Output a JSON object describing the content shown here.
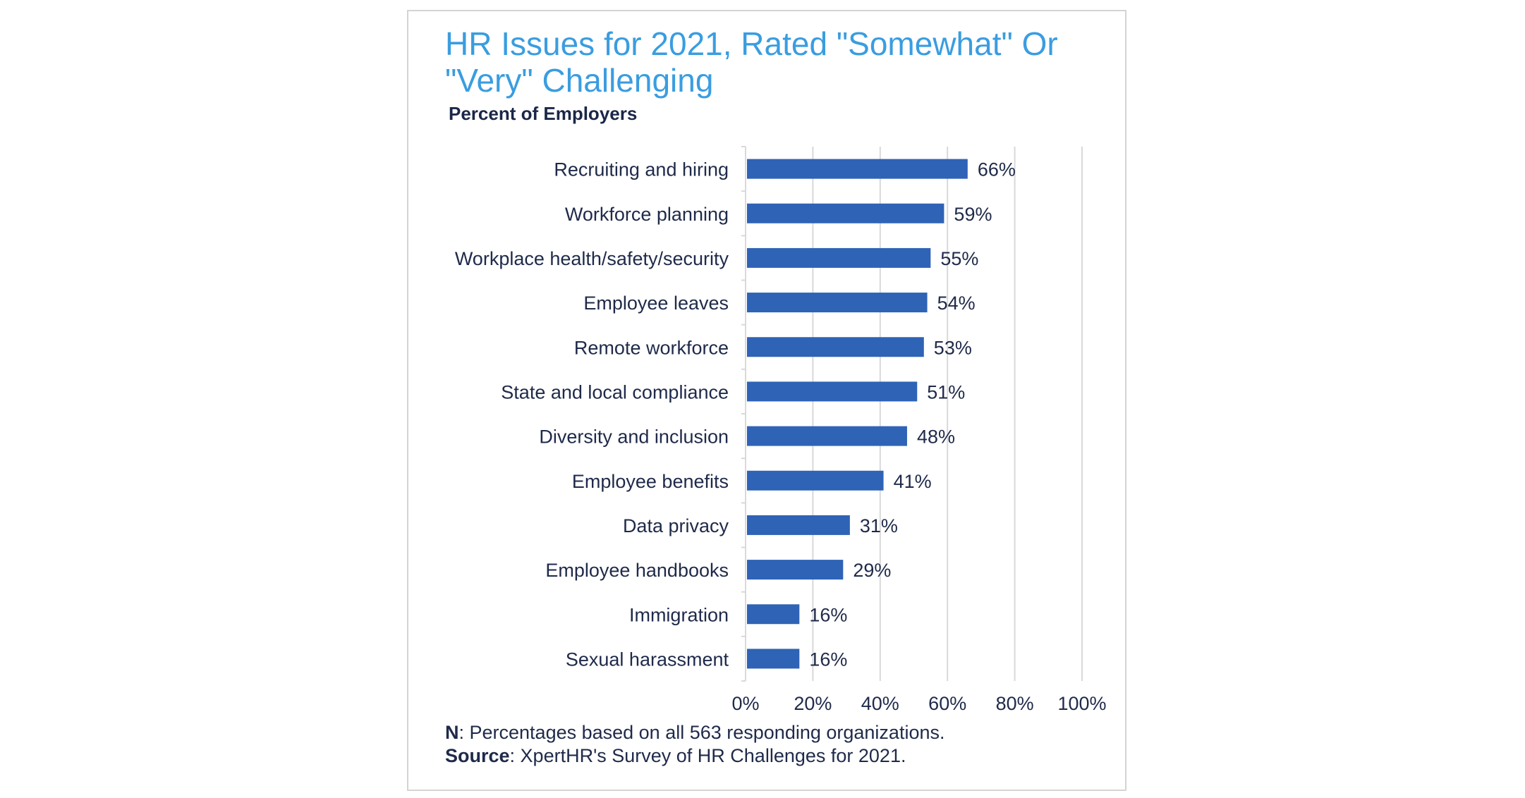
{
  "chart_data": {
    "type": "bar",
    "orientation": "horizontal",
    "title": "HR Issues for 2021, Rated \"Somewhat\" Or \"Very\" Challenging",
    "subtitle": "Percent of Employers",
    "categories": [
      "Recruiting and hiring",
      "Workforce planning",
      "Workplace health/safety/security",
      "Employee leaves",
      "Remote workforce",
      "State and local compliance",
      "Diversity and inclusion",
      "Employee benefits",
      "Data privacy",
      "Employee handbooks",
      "Immigration",
      "Sexual harassment"
    ],
    "values": [
      66,
      59,
      55,
      54,
      53,
      51,
      48,
      41,
      31,
      29,
      16,
      16
    ],
    "data_labels": [
      "66%",
      "59%",
      "55%",
      "54%",
      "53%",
      "51%",
      "48%",
      "41%",
      "31%",
      "29%",
      "16%",
      "16%"
    ],
    "xlim": [
      0,
      100
    ],
    "x_ticks": [
      "0%",
      "20%",
      "40%",
      "60%",
      "80%",
      "100%"
    ],
    "grid": true,
    "bar_color": "#2e63b6",
    "title_color": "#3a9de0",
    "notes": {
      "n_label": "N",
      "n_text": ": Percentages based on all 563 responding organizations.",
      "source_label": "Source",
      "source_text": ": XpertHR's Survey of HR Challenges for 2021."
    }
  }
}
